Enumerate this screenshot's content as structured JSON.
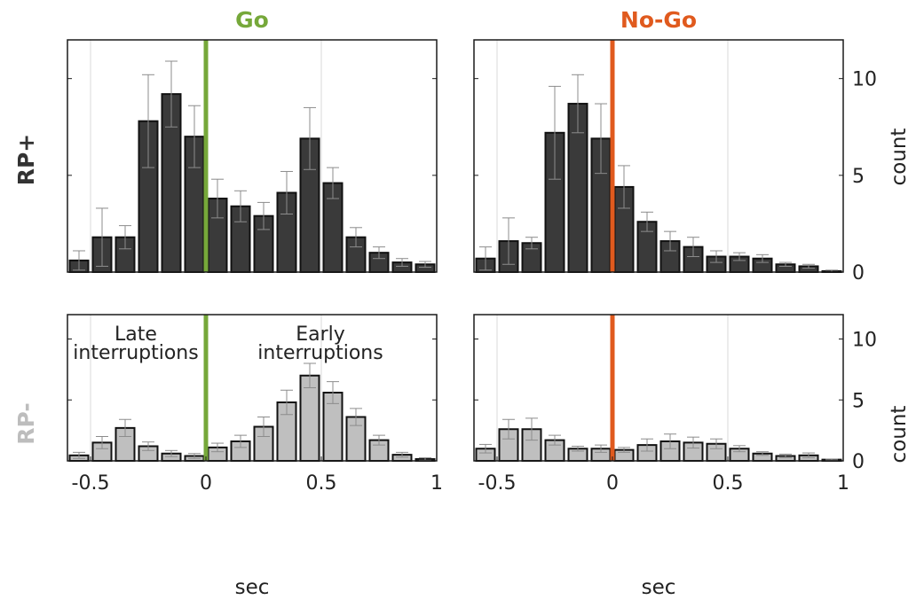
{
  "figure": {
    "col_titles": [
      {
        "text": "Go",
        "color": "#76a83a"
      },
      {
        "text": "No-Go",
        "color": "#e05a1e"
      }
    ],
    "row_titles": [
      {
        "text": "RP+",
        "color": "#333333"
      },
      {
        "text": "RP-",
        "color": "#bdbdbd"
      }
    ],
    "bar_colors": {
      "rp_plus": "#3a3a3a",
      "rp_minus": "#bfbfbf"
    },
    "annotations": {
      "late": [
        "Late",
        "interruptions"
      ],
      "early": [
        "Early",
        "interruptions"
      ]
    }
  },
  "chart_data": [
    {
      "type": "bar",
      "panel": "RP+ Go",
      "title": "Go",
      "xlabel": "",
      "ylabel": "",
      "xlim": [
        -0.6,
        1.0
      ],
      "ylim": [
        0,
        12
      ],
      "yticks": [
        0,
        5,
        10
      ],
      "bin_width": 0.1,
      "grid_x": [
        -0.5,
        0.5
      ],
      "marker_x": 0,
      "marker_color": "#76a83a",
      "x": [
        -0.55,
        -0.45,
        -0.35,
        -0.25,
        -0.15,
        -0.05,
        0.05,
        0.15,
        0.25,
        0.35,
        0.45,
        0.55,
        0.65,
        0.75,
        0.85,
        0.95
      ],
      "values": [
        0.6,
        1.8,
        1.8,
        7.8,
        9.2,
        7.0,
        3.8,
        3.4,
        2.9,
        4.1,
        6.9,
        4.6,
        1.8,
        1.0,
        0.5,
        0.4
      ],
      "errors": [
        0.5,
        1.5,
        0.6,
        2.4,
        1.7,
        1.6,
        1.0,
        0.8,
        0.7,
        1.1,
        1.6,
        0.8,
        0.5,
        0.3,
        0.2,
        0.15
      ]
    },
    {
      "type": "bar",
      "panel": "RP+ No-Go",
      "title": "No-Go",
      "xlabel": "",
      "ylabel": "count",
      "xlim": [
        -0.6,
        1.0
      ],
      "ylim": [
        0,
        12
      ],
      "yticks": [
        0,
        5,
        10
      ],
      "ytick_labels": [
        "0",
        "5",
        "10"
      ],
      "bin_width": 0.1,
      "grid_x": [
        -0.5,
        0.5
      ],
      "marker_x": 0,
      "marker_color": "#e05a1e",
      "x": [
        -0.55,
        -0.45,
        -0.35,
        -0.25,
        -0.15,
        -0.05,
        0.05,
        0.15,
        0.25,
        0.35,
        0.45,
        0.55,
        0.65,
        0.75,
        0.85,
        0.95
      ],
      "values": [
        0.7,
        1.6,
        1.5,
        7.2,
        8.7,
        6.9,
        4.4,
        2.6,
        1.6,
        1.3,
        0.8,
        0.8,
        0.7,
        0.4,
        0.3,
        0.05
      ],
      "errors": [
        0.6,
        1.2,
        0.3,
        2.4,
        1.5,
        1.8,
        1.1,
        0.5,
        0.5,
        0.5,
        0.3,
        0.2,
        0.2,
        0.1,
        0.1,
        0.05
      ]
    },
    {
      "type": "bar",
      "panel": "RP- Go",
      "title": "",
      "xlabel": "sec",
      "ylabel": "",
      "xlim": [
        -0.6,
        1.0
      ],
      "ylim": [
        0,
        12
      ],
      "yticks": [
        0,
        5,
        10
      ],
      "xticks": [
        -0.5,
        0,
        0.5,
        1
      ],
      "xtick_labels": [
        "-0.5",
        "0",
        "0.5",
        "1"
      ],
      "bin_width": 0.1,
      "grid_x": [
        -0.5,
        0.5
      ],
      "marker_x": 0,
      "marker_color": "#76a83a",
      "x": [
        -0.55,
        -0.45,
        -0.35,
        -0.25,
        -0.15,
        -0.05,
        0.05,
        0.15,
        0.25,
        0.35,
        0.45,
        0.55,
        0.65,
        0.75,
        0.85,
        0.95
      ],
      "values": [
        0.45,
        1.5,
        2.7,
        1.2,
        0.6,
        0.4,
        1.1,
        1.6,
        2.8,
        4.8,
        7.0,
        5.6,
        3.6,
        1.7,
        0.5,
        0.15
      ],
      "errors": [
        0.25,
        0.5,
        0.7,
        0.35,
        0.25,
        0.2,
        0.35,
        0.5,
        0.8,
        1.0,
        1.0,
        0.9,
        0.7,
        0.4,
        0.2,
        0.1
      ]
    },
    {
      "type": "bar",
      "panel": "RP- No-Go",
      "title": "",
      "xlabel": "sec",
      "ylabel": "count",
      "xlim": [
        -0.6,
        1.0
      ],
      "ylim": [
        0,
        12
      ],
      "yticks": [
        0,
        5,
        10
      ],
      "ytick_labels": [
        "0",
        "5",
        "10"
      ],
      "xticks": [
        -0.5,
        0,
        0.5,
        1
      ],
      "xtick_labels": [
        "-0.5",
        "0",
        "0.5",
        "1"
      ],
      "bin_width": 0.1,
      "grid_x": [
        -0.5,
        0.5
      ],
      "marker_x": 0,
      "marker_color": "#e05a1e",
      "x": [
        -0.55,
        -0.45,
        -0.35,
        -0.25,
        -0.15,
        -0.05,
        0.05,
        0.15,
        0.25,
        0.35,
        0.45,
        0.55,
        0.65,
        0.75,
        0.85,
        0.95
      ],
      "values": [
        1.0,
        2.6,
        2.6,
        1.7,
        1.0,
        1.0,
        0.9,
        1.3,
        1.6,
        1.5,
        1.4,
        1.0,
        0.6,
        0.4,
        0.45,
        0.1
      ],
      "errors": [
        0.35,
        0.8,
        0.9,
        0.4,
        0.2,
        0.3,
        0.2,
        0.5,
        0.6,
        0.45,
        0.4,
        0.25,
        0.15,
        0.15,
        0.2,
        0.05
      ]
    }
  ]
}
